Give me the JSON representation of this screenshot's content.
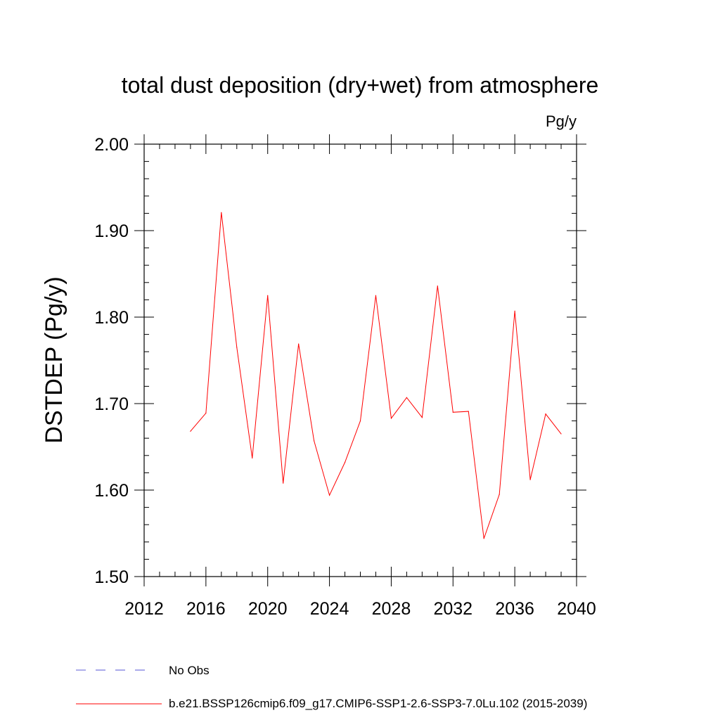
{
  "chart_data": {
    "type": "line",
    "title": "total dust deposition (dry+wet) from atmosphere",
    "units_label": "Pg/y",
    "ylabel": "DSTDEP  (Pg/y)",
    "xlabel": "",
    "xlim": [
      2012,
      2040
    ],
    "ylim": [
      1.5,
      2.0
    ],
    "x_ticks": [
      2012,
      2016,
      2020,
      2024,
      2028,
      2032,
      2036,
      2040
    ],
    "x_tick_labels": [
      "2012",
      "2016",
      "2020",
      "2024",
      "2028",
      "2032",
      "2036",
      "2040"
    ],
    "y_ticks": [
      1.5,
      1.6,
      1.7,
      1.8,
      1.9,
      2.0
    ],
    "y_tick_labels": [
      "1.50",
      "1.60",
      "1.70",
      "1.80",
      "1.90",
      "2.00"
    ],
    "grid": false,
    "legend_position": "bottom",
    "series": [
      {
        "name": "b.e21.BSSP126cmip6.f09_g17.CMIP6-SSP1-2.6-SSP3-7.0Lu.102 (2015-2039)",
        "color": "#ff0000",
        "style": "solid",
        "x": [
          2015,
          2016,
          2017,
          2018,
          2019,
          2020,
          2021,
          2022,
          2023,
          2024,
          2025,
          2026,
          2027,
          2028,
          2029,
          2030,
          2031,
          2032,
          2033,
          2034,
          2035,
          2036,
          2037,
          2038,
          2039
        ],
        "y": [
          1.668,
          1.689,
          1.921,
          1.765,
          1.637,
          1.825,
          1.608,
          1.769,
          1.657,
          1.594,
          1.632,
          1.68,
          1.825,
          1.683,
          1.707,
          1.684,
          1.836,
          1.69,
          1.691,
          1.544,
          1.595,
          1.807,
          1.612,
          1.688,
          1.665
        ]
      }
    ],
    "legend": [
      {
        "label": "No Obs",
        "color": "#7777dd",
        "style": "dashed"
      },
      {
        "label": "b.e21.BSSP126cmip6.f09_g17.CMIP6-SSP1-2.6-SSP3-7.0Lu.102 (2015-2039)",
        "color": "#ff0000",
        "style": "solid"
      }
    ]
  }
}
